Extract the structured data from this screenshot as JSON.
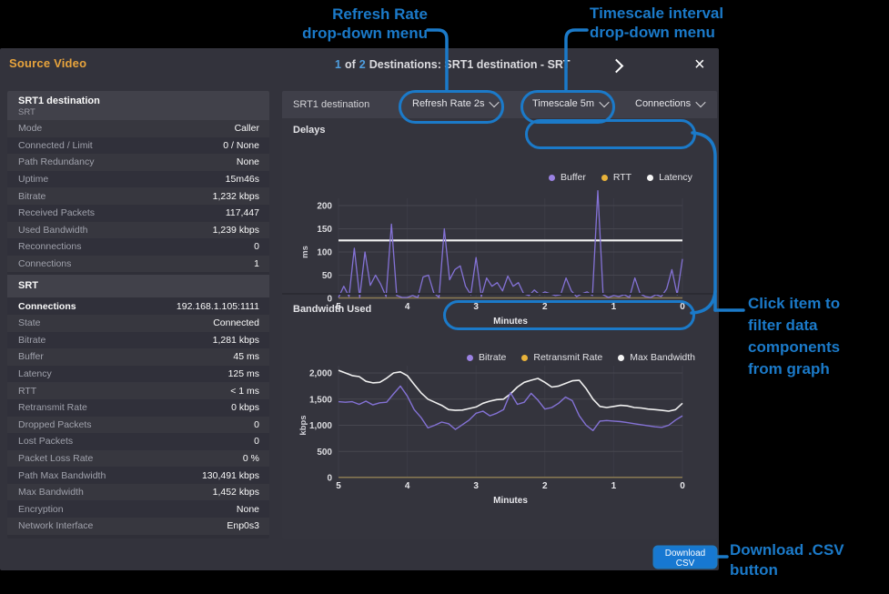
{
  "colors": {
    "annotation_blue": "#1b7ac9",
    "accent_orange": "#e8a43c",
    "count_blue": "#4f9fe0",
    "button_blue": "#1778d2",
    "series_purple": "#8472d6",
    "series_gold": "#8a7a52",
    "series_white": "#f0f0f0",
    "legend_purple_dot": "#9b82e3",
    "legend_gold_dot": "#e8b23a"
  },
  "annotations": {
    "refresh": [
      "Refresh Rate",
      "drop-down menu"
    ],
    "timescale": [
      "Timescale interval",
      "drop-down menu"
    ],
    "filter": [
      "Click item to",
      "filter data",
      "components",
      "from graph"
    ],
    "download": [
      "Download .CSV",
      "button"
    ]
  },
  "header": {
    "source_label": "Source Video",
    "count_current": "1",
    "count_of": "of",
    "count_total": "2",
    "title_rest": "Destinations: SRT1 destination - SRT",
    "close_icon": "×"
  },
  "sidebar": {
    "header": {
      "title": "SRT1 destination",
      "subtitle": "SRT"
    },
    "groups": [
      {
        "start": "light",
        "rows": [
          {
            "label": "Mode",
            "value": "Caller"
          },
          {
            "label": "Connected / Limit",
            "value": "0 / None"
          },
          {
            "label": "Path Redundancy",
            "value": "None"
          },
          {
            "label": "Uptime",
            "value": "15m46s"
          },
          {
            "label": "Bitrate",
            "value": "1,232 kbps"
          },
          {
            "label": "Received Packets",
            "value": "117,447"
          },
          {
            "label": "Used Bandwidth",
            "value": "1,239 kbps"
          },
          {
            "label": "Reconnections",
            "value": "0"
          },
          {
            "label": "Connections",
            "value": "1"
          }
        ]
      },
      {
        "section": "SRT",
        "start": "dark",
        "rows": [
          {
            "label": "Connections",
            "value": "192.168.1.105:1111",
            "bold": true
          },
          {
            "label": "State",
            "value": "Connected"
          },
          {
            "label": "Bitrate",
            "value": "1,281 kbps"
          },
          {
            "label": "Buffer",
            "value": "45 ms"
          },
          {
            "label": "Latency",
            "value": "125 ms"
          },
          {
            "label": "RTT",
            "value": "< 1 ms"
          },
          {
            "label": "Retransmit Rate",
            "value": "0 kbps"
          },
          {
            "label": "Dropped Packets",
            "value": "0"
          },
          {
            "label": "Lost Packets",
            "value": "0"
          },
          {
            "label": "Packet Loss Rate",
            "value": "0 %"
          },
          {
            "label": "Path Max Bandwidth",
            "value": "130,491 kbps"
          },
          {
            "label": "Max Bandwidth",
            "value": "1,452 kbps"
          },
          {
            "label": "Encryption",
            "value": "None"
          },
          {
            "label": "Network Interface",
            "value": "Enp0s3"
          }
        ]
      }
    ]
  },
  "toolbar": {
    "title": "SRT1 destination",
    "dropdowns": [
      {
        "label": "Refresh Rate 2s"
      },
      {
        "label": "Timescale 5m"
      },
      {
        "label": "Connections"
      }
    ]
  },
  "footer": {
    "download_label": "Download CSV"
  },
  "chart_data": [
    {
      "type": "line",
      "title": "Delays",
      "xlabel": "Minutes",
      "ylabel": "ms",
      "ylim": [
        0,
        200
      ],
      "yticks": [
        0,
        50,
        100,
        150,
        200
      ],
      "xticks": [
        5,
        4,
        3,
        2,
        1,
        0
      ],
      "x_direction": "minutes ago, 5 at left to 0 at right",
      "grid": true,
      "legend_position": "top-right",
      "series": [
        {
          "name": "Latency",
          "color": "#f0f0f0",
          "dot": "#f5f5f5",
          "width": 2.2,
          "values": [
            125,
            125
          ]
        },
        {
          "name": "RTT",
          "color": "#8a7a52",
          "dot": "#e8b23a",
          "width": 1.5,
          "values": [
            1,
            1
          ]
        },
        {
          "name": "Buffer",
          "color": "#8472d6",
          "dot": "#9b82e3",
          "width": 1.3,
          "values": [
            2,
            26,
            4,
            108,
            2,
            100,
            28,
            50,
            30,
            4,
            160,
            6,
            2,
            2,
            6,
            2,
            46,
            50,
            12,
            2,
            150,
            40,
            62,
            70,
            26,
            8,
            88,
            4,
            44,
            26,
            34,
            16,
            48,
            26,
            34,
            10,
            6,
            18,
            8,
            14,
            10,
            6,
            8,
            44,
            16,
            4,
            10,
            14,
            6,
            232,
            8,
            2,
            6,
            4,
            8,
            2,
            44,
            10,
            4,
            2,
            8,
            4,
            20,
            62,
            8,
            85
          ]
        }
      ],
      "legend_order": [
        "Buffer",
        "RTT",
        "Latency"
      ]
    },
    {
      "type": "line",
      "title": "Bandwidth Used",
      "xlabel": "Minutes",
      "ylabel": "kbps",
      "ylim": [
        0,
        2000
      ],
      "yticks": [
        0,
        500,
        1000,
        1500,
        2000
      ],
      "xticks": [
        5,
        4,
        3,
        2,
        1,
        0
      ],
      "x_direction": "minutes ago, 5 at left to 0 at right",
      "grid": true,
      "legend_position": "top-right",
      "series": [
        {
          "name": "Max Bandwidth",
          "color": "#f0f0f0",
          "dot": "#f5f5f5",
          "width": 1.6,
          "values": [
            2050,
            2000,
            1950,
            1930,
            1840,
            1810,
            1820,
            1900,
            2000,
            2020,
            1950,
            1780,
            1620,
            1500,
            1440,
            1380,
            1300,
            1285,
            1290,
            1320,
            1350,
            1420,
            1460,
            1490,
            1500,
            1600,
            1730,
            1820,
            1860,
            1895,
            1820,
            1730,
            1750,
            1800,
            1850,
            1860,
            1700,
            1500,
            1360,
            1340,
            1360,
            1380,
            1370,
            1340,
            1330,
            1310,
            1300,
            1285,
            1270,
            1300,
            1420
          ]
        },
        {
          "name": "Retransmit Rate",
          "color": "#8a7a52",
          "dot": "#e8b23a",
          "width": 1.5,
          "values": [
            3,
            3
          ]
        },
        {
          "name": "Bitrate",
          "color": "#8472d6",
          "dot": "#9b82e3",
          "width": 1.4,
          "values": [
            1450,
            1440,
            1450,
            1400,
            1460,
            1390,
            1430,
            1440,
            1600,
            1750,
            1560,
            1300,
            1150,
            950,
            1000,
            1060,
            1030,
            920,
            1010,
            1100,
            1230,
            1270,
            1180,
            1230,
            1300,
            1620,
            1400,
            1440,
            1610,
            1480,
            1310,
            1340,
            1420,
            1540,
            1470,
            1180,
            1000,
            900,
            1080,
            1090,
            1080,
            1070,
            1050,
            1030,
            1010,
            990,
            970,
            960,
            1000,
            1100,
            1180
          ]
        }
      ],
      "legend_order": [
        "Bitrate",
        "Retransmit Rate",
        "Max Bandwidth"
      ]
    }
  ]
}
